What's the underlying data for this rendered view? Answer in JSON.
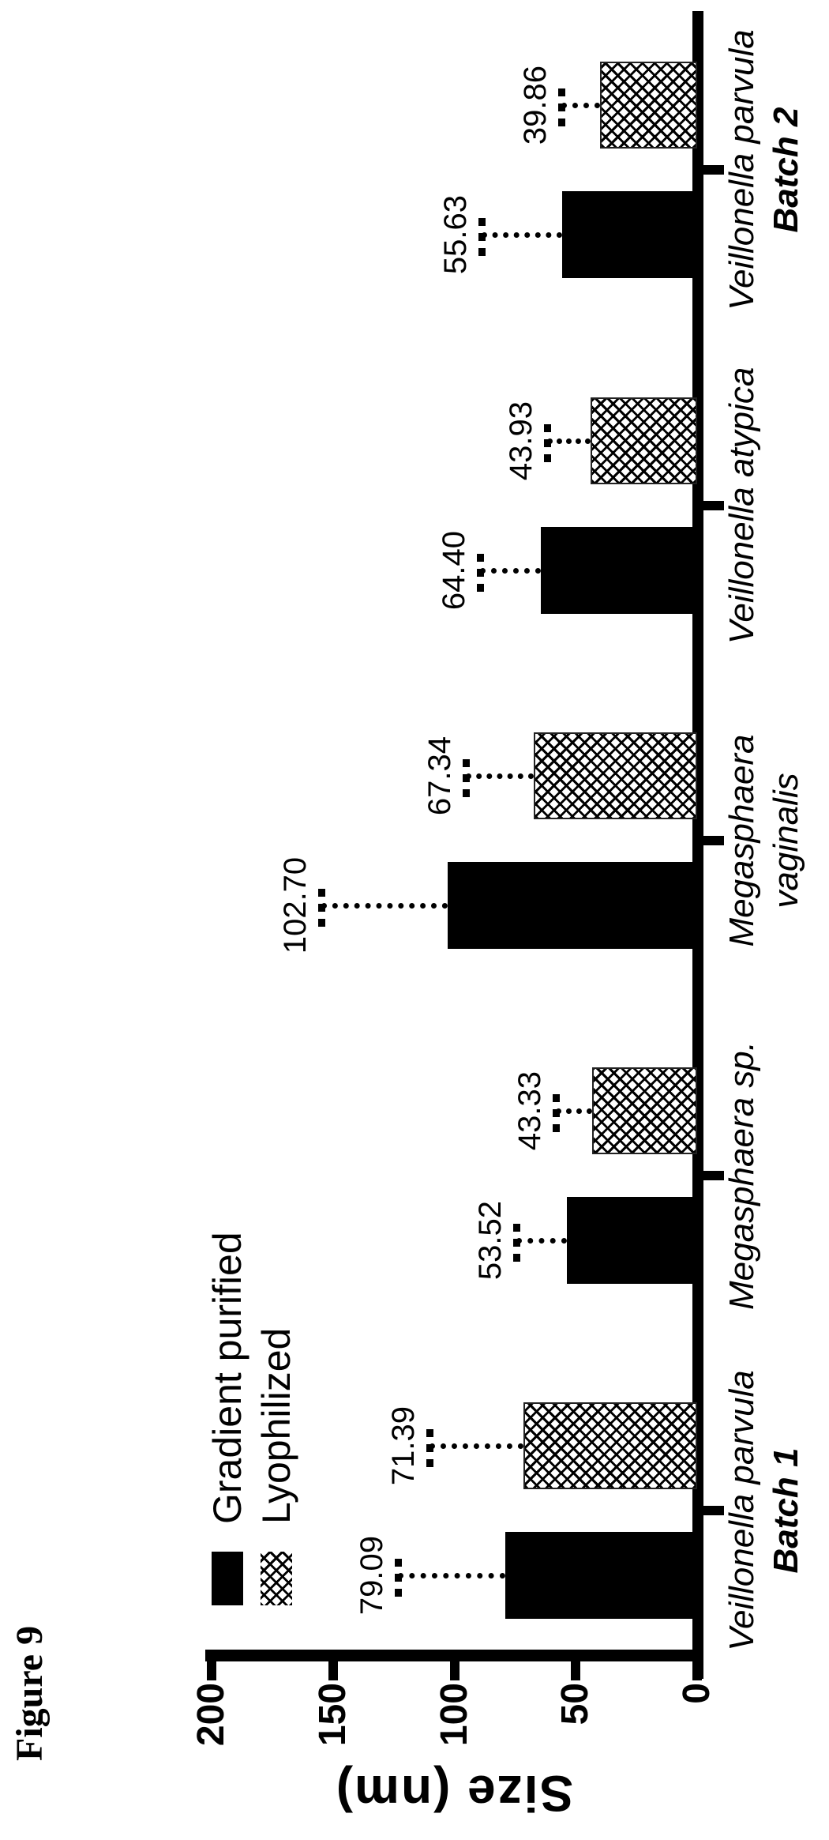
{
  "figure_label": "Figure 9",
  "chart_data": {
    "type": "bar",
    "title": "",
    "ylabel": "Size (nm)",
    "ylim": [
      0,
      200
    ],
    "yticks": [
      "0",
      "50",
      "100",
      "150",
      "200"
    ],
    "grid": false,
    "legend_position": "top-left-inside",
    "orientation_note": "entire chart rotated 90 degrees counter-clockwise on portrait page",
    "categories": [
      {
        "line1": "Veillonella parvula",
        "line2": "Batch 1"
      },
      {
        "line1": "Megasphaera sp.",
        "line2": ""
      },
      {
        "line1": "Megasphaera",
        "line2": "vaginalis"
      },
      {
        "line1": "Veillonella atypica",
        "line2": ""
      },
      {
        "line1": "Veillonella parvula",
        "line2": "Batch 2"
      }
    ],
    "series": [
      {
        "name": "Gradient purified",
        "pattern": "solid-black",
        "values": [
          79.09,
          53.52,
          102.7,
          64.4,
          55.63
        ],
        "value_labels": [
          "79.09",
          "53.52",
          "102.70",
          "64.40",
          "55.63"
        ],
        "errors_upper": [
          44,
          21,
          52,
          25,
          33
        ]
      },
      {
        "name": "Lyophilized",
        "pattern": "diagonal-crosshatch",
        "values": [
          71.39,
          43.33,
          67.34,
          43.93,
          39.86
        ],
        "value_labels": [
          "71.39",
          "43.33",
          "67.34",
          "43.93",
          "39.86"
        ],
        "errors_upper": [
          39,
          15,
          28,
          18,
          16
        ]
      }
    ],
    "colors": {
      "bar_black": "#000000",
      "background": "#ffffff",
      "ink": "#000000"
    }
  }
}
